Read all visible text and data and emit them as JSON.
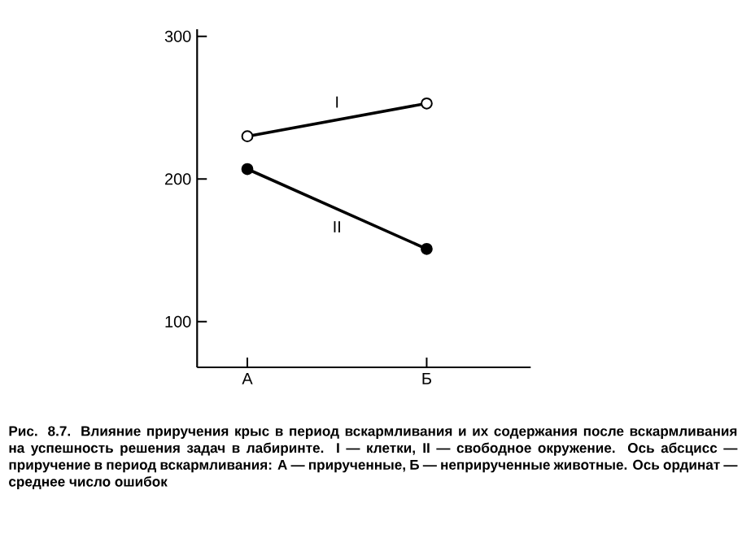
{
  "chart_data": {
    "type": "line",
    "categories": [
      "А",
      "Б"
    ],
    "series": [
      {
        "name": "I",
        "color": "#000000",
        "values": [
          230,
          253
        ]
      },
      {
        "name": "II",
        "color": "#000000",
        "values": [
          207,
          151
        ]
      }
    ],
    "ylim": [
      68,
      305
    ],
    "yticks": [
      100,
      200,
      300
    ],
    "marker": "circle",
    "grid": false,
    "annotations": [
      "**Рис. 8.7.** Влияние приручения крыс в период вскармливания и их содержания после вскармливания на успешность решения задач в лабиринте. I — клетки, II — свободное окружение. Ось абсцисс — приручение в период вскармливания: А — прирученные, Б — неприрученные животные. Ось ординат — среднее число ошибок"
    ]
  }
}
